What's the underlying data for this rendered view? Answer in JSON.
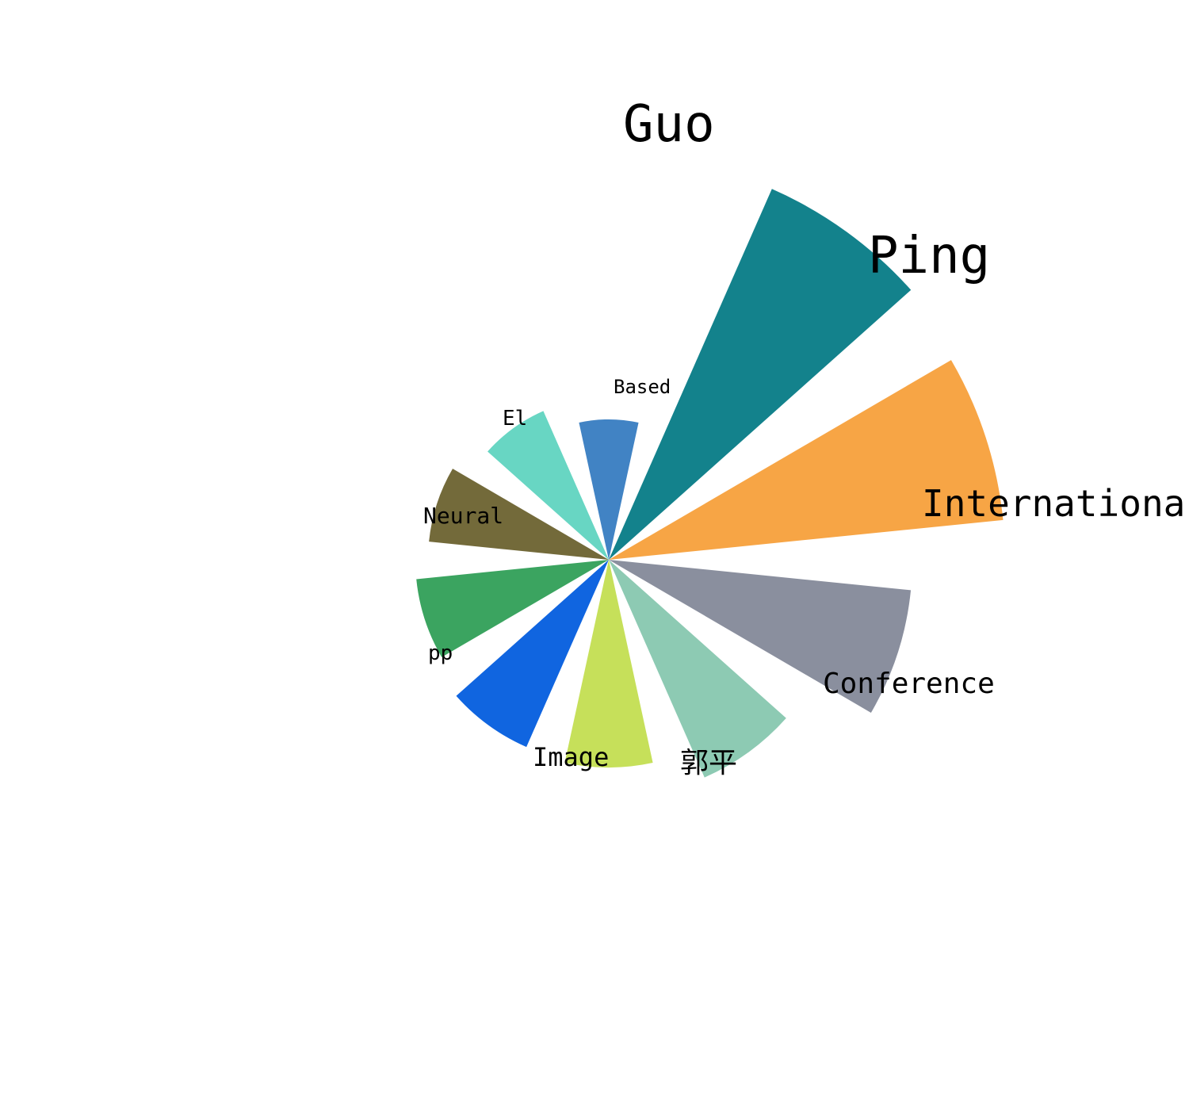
{
  "chart_data": {
    "type": "nightingale-rose",
    "title": "",
    "legend": "none",
    "grid": false,
    "slices": [
      {
        "label": "Based",
        "value": 177,
        "color": "#4183C4"
      },
      {
        "label": "Guo",
        "value": 511,
        "color": "#13828C"
      },
      {
        "label": "Ping",
        "value": 500,
        "color": "#F7A545"
      },
      {
        "label": "Internationa",
        "value": 383,
        "color": "#8A8F9E"
      },
      {
        "label": "Conference",
        "value": 300,
        "color": "#8DCAB3"
      },
      {
        "label": "郭平",
        "value": 262,
        "color": "#C6E05A"
      },
      {
        "label": "Image",
        "value": 258,
        "color": "#1065E0"
      },
      {
        "label": "pp",
        "value": 244,
        "color": "#3BA460"
      },
      {
        "label": "Neural",
        "value": 228,
        "color": "#736A3A"
      },
      {
        "label": "El",
        "value": 205,
        "color": "#68D6C3"
      }
    ]
  }
}
